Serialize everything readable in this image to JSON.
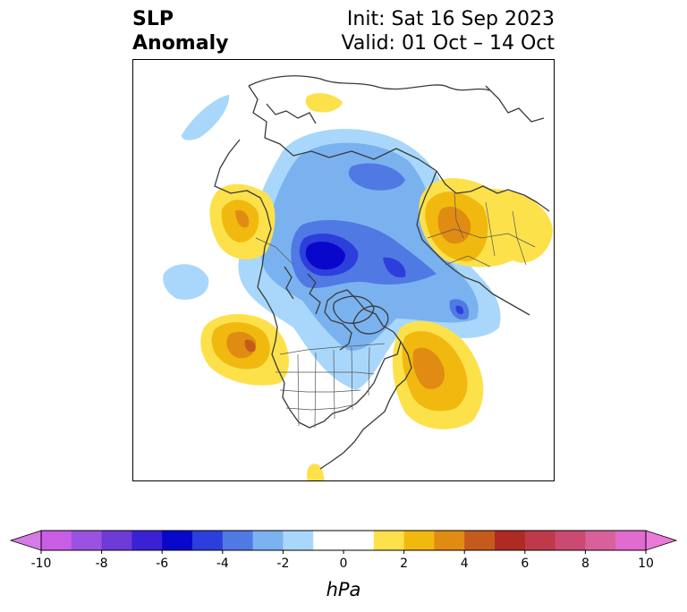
{
  "title": {
    "line1": "SLP",
    "line2": "Anomaly",
    "init": "Init: Sat 16 Sep 2023",
    "valid": "Valid: 01 Oct – 14 Oct"
  },
  "colorbar": {
    "unit": "hPa",
    "ticks": [
      "-10",
      "-8",
      "-6",
      "-4",
      "-2",
      "0",
      "2",
      "4",
      "6",
      "8",
      "10"
    ],
    "levels": [
      -10,
      -9,
      -8,
      -7,
      -6,
      -5,
      -4,
      -3,
      -2,
      -1,
      1,
      2,
      3,
      4,
      5,
      6,
      7,
      8,
      9,
      10
    ],
    "colors": [
      "#c95de6",
      "#9a52e0",
      "#6e3ad8",
      "#3a22d4",
      "#0a07cc",
      "#2c3fdc",
      "#5079e4",
      "#7ab2f0",
      "#a8d7fb",
      "#ffffff",
      "#fde14b",
      "#f1b90f",
      "#e08b12",
      "#c65a1c",
      "#b02a24",
      "#c0394b",
      "#cc4a72",
      "#d8619c",
      "#e16bcf"
    ],
    "under_color": "#d67ae6",
    "over_color": "#e97ad9"
  },
  "map": {
    "projection": "north-polar stereographic",
    "features": [
      "coastlines",
      "country borders",
      "US state borders"
    ]
  }
}
